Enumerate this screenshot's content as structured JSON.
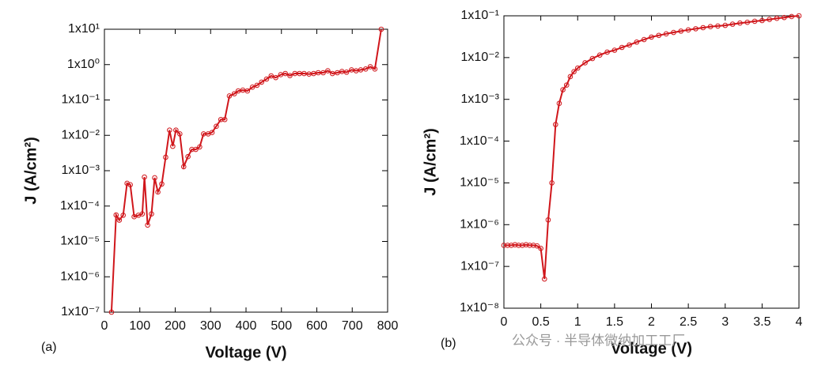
{
  "chart_data": [
    {
      "type": "line",
      "panel_label": "(a)",
      "xlabel": "Voltage (V)",
      "ylabel": "J (A/cm²)",
      "color": "#d0161b",
      "log_y": true,
      "markers": true,
      "x": [
        20,
        33,
        42,
        53,
        64,
        73,
        84,
        96,
        107,
        113,
        122,
        133,
        142,
        151,
        162,
        173,
        184,
        193,
        202,
        213,
        224,
        236,
        247,
        258,
        269,
        280,
        293,
        304,
        316,
        329,
        340,
        353,
        367,
        378,
        391,
        404,
        418,
        431,
        444,
        458,
        471,
        484,
        498,
        511,
        524,
        538,
        551,
        564,
        578,
        591,
        604,
        618,
        631,
        644,
        658,
        671,
        684,
        698,
        711,
        724,
        738,
        751,
        764,
        782
      ],
      "values": [
        1e-07,
        5.6e-05,
        4e-05,
        5.5e-05,
        0.00044,
        0.0004,
        5e-05,
        5.5e-05,
        6e-05,
        0.00066,
        2.9e-05,
        6e-05,
        0.00063,
        0.00025,
        0.00042,
        0.0024,
        0.014,
        0.0049,
        0.014,
        0.011,
        0.0013,
        0.0025,
        0.004,
        0.004,
        0.0047,
        0.011,
        0.011,
        0.012,
        0.018,
        0.028,
        0.028,
        0.13,
        0.15,
        0.18,
        0.19,
        0.18,
        0.23,
        0.26,
        0.32,
        0.39,
        0.48,
        0.43,
        0.52,
        0.56,
        0.49,
        0.56,
        0.56,
        0.56,
        0.54,
        0.56,
        0.59,
        0.59,
        0.67,
        0.56,
        0.59,
        0.64,
        0.61,
        0.71,
        0.67,
        0.71,
        0.75,
        0.87,
        0.75,
        10
      ],
      "xlim": [
        0,
        800
      ],
      "xticks": [
        0,
        100,
        200,
        300,
        400,
        500,
        600,
        700,
        800
      ],
      "ylim": [
        1e-07,
        10
      ],
      "yticks": [
        {
          "value": 1e-07,
          "label": "1x10⁻⁷"
        },
        {
          "value": 1e-06,
          "label": "1x10⁻⁶"
        },
        {
          "value": 1e-05,
          "label": "1x10⁻⁵"
        },
        {
          "value": 0.0001,
          "label": "1x10⁻⁴"
        },
        {
          "value": 0.001,
          "label": "1x10⁻³"
        },
        {
          "value": 0.01,
          "label": "1x10⁻²"
        },
        {
          "value": 0.1,
          "label": "1x10⁻¹"
        },
        {
          "value": 1,
          "label": "1x10⁰"
        },
        {
          "value": 10,
          "label": "1x10¹"
        }
      ]
    },
    {
      "type": "line",
      "panel_label": "(b)",
      "xlabel": "Voltage (V)",
      "ylabel": "J (A/cm²)",
      "color": "#d0161b",
      "log_y": true,
      "markers": true,
      "annotation": "公众号 · 半导体微纳加工工厂",
      "x": [
        0,
        0.05,
        0.1,
        0.15,
        0.2,
        0.25,
        0.3,
        0.35,
        0.4,
        0.45,
        0.5,
        0.55,
        0.6,
        0.65,
        0.7,
        0.75,
        0.8,
        0.85,
        0.9,
        0.95,
        1,
        1.1,
        1.2,
        1.3,
        1.4,
        1.5,
        1.6,
        1.7,
        1.8,
        1.9,
        2,
        2.1,
        2.2,
        2.3,
        2.4,
        2.5,
        2.6,
        2.7,
        2.8,
        2.9,
        3,
        3.1,
        3.2,
        3.3,
        3.4,
        3.5,
        3.6,
        3.7,
        3.8,
        3.9,
        4
      ],
      "values": [
        3.2e-07,
        3.2e-07,
        3.2e-07,
        3.3e-07,
        3.2e-07,
        3.2e-07,
        3.3e-07,
        3.2e-07,
        3.2e-07,
        3.1e-07,
        2.7e-07,
        5e-08,
        1.3e-06,
        1e-05,
        0.00025,
        0.0008,
        0.0017,
        0.0022,
        0.0035,
        0.0046,
        0.0056,
        0.0075,
        0.0095,
        0.0115,
        0.0135,
        0.015,
        0.0175,
        0.02,
        0.0235,
        0.027,
        0.031,
        0.034,
        0.037,
        0.04,
        0.043,
        0.046,
        0.049,
        0.052,
        0.055,
        0.057,
        0.059,
        0.063,
        0.067,
        0.07,
        0.074,
        0.077,
        0.082,
        0.087,
        0.091,
        0.096,
        0.1
      ],
      "xlim": [
        0,
        4
      ],
      "xticks": [
        0,
        0.5,
        1,
        1.5,
        2,
        2.5,
        3,
        3.5,
        4
      ],
      "ylim": [
        1e-08,
        0.1
      ],
      "yticks": [
        {
          "value": 1e-08,
          "label": "1x10⁻⁸"
        },
        {
          "value": 1e-07,
          "label": "1x10⁻⁷"
        },
        {
          "value": 1e-06,
          "label": "1x10⁻⁶"
        },
        {
          "value": 1e-05,
          "label": "1x10⁻⁵"
        },
        {
          "value": 0.0001,
          "label": "1x10⁻⁴"
        },
        {
          "value": 0.001,
          "label": "1x10⁻³"
        },
        {
          "value": 0.01,
          "label": "1x10⁻²"
        },
        {
          "value": 0.1,
          "label": "1x10⁻¹"
        }
      ]
    }
  ]
}
